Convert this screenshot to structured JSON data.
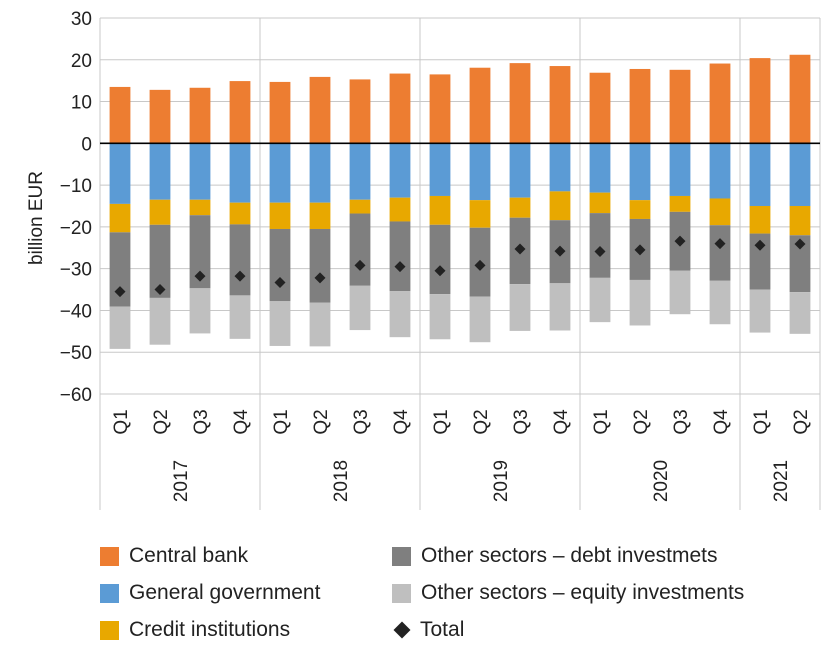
{
  "chart_data": {
    "type": "bar",
    "stacked": true,
    "ylabel": "billion EUR",
    "ylim": [
      -60,
      30
    ],
    "yticks": [
      30,
      20,
      10,
      0,
      -10,
      -20,
      -30,
      -40,
      -50,
      -60
    ],
    "ytick_labels": [
      "30",
      "20",
      "10",
      "0",
      "−10",
      "−20",
      "−30",
      "−40",
      "−50",
      "−60"
    ],
    "grid": "horizontal",
    "legend_position": "bottom",
    "years": [
      {
        "label": "2017",
        "quarters": 4
      },
      {
        "label": "2018",
        "quarters": 4
      },
      {
        "label": "2019",
        "quarters": 4
      },
      {
        "label": "2020",
        "quarters": 4
      },
      {
        "label": "2021",
        "quarters": 2
      }
    ],
    "categories": [
      "Q1",
      "Q2",
      "Q3",
      "Q4",
      "Q1",
      "Q2",
      "Q3",
      "Q4",
      "Q1",
      "Q2",
      "Q3",
      "Q4",
      "Q1",
      "Q2",
      "Q3",
      "Q4",
      "Q1",
      "Q2"
    ],
    "series": [
      {
        "name": "Central bank",
        "color": "#ED7D31",
        "values": [
          13.5,
          12.8,
          13.3,
          14.9,
          14.7,
          15.9,
          15.3,
          16.7,
          16.5,
          18.1,
          19.2,
          18.5,
          16.9,
          17.8,
          17.6,
          19.1,
          20.4,
          21.2
        ]
      },
      {
        "name": "General government",
        "color": "#5B9BD5",
        "values": [
          -14.5,
          -13.5,
          -13.5,
          -14.2,
          -14.2,
          -14.2,
          -13.5,
          -13.0,
          -12.6,
          -13.6,
          -13.0,
          -11.5,
          -11.8,
          -13.6,
          -12.6,
          -13.2,
          -15.0,
          -15.0
        ]
      },
      {
        "name": "Credit institutions",
        "color": "#E8A800",
        "values": [
          -6.8,
          -6.0,
          -3.7,
          -5.2,
          -6.3,
          -6.3,
          -3.3,
          -5.7,
          -6.9,
          -6.6,
          -4.8,
          -6.9,
          -4.9,
          -4.5,
          -3.8,
          -6.4,
          -6.6,
          -7.0
        ]
      },
      {
        "name": "Other sectors – debt investmets",
        "color": "#7F7F7F",
        "values": [
          -17.8,
          -17.5,
          -17.5,
          -17.0,
          -17.3,
          -17.6,
          -17.3,
          -16.7,
          -16.6,
          -16.5,
          -15.9,
          -15.1,
          -15.5,
          -14.6,
          -14.1,
          -13.3,
          -13.4,
          -13.6
        ]
      },
      {
        "name": "Other sectors – equity investments",
        "color": "#BFBFBF",
        "values": [
          -10.1,
          -11.2,
          -10.8,
          -10.4,
          -10.7,
          -10.5,
          -10.6,
          -11.0,
          -10.8,
          -10.9,
          -11.2,
          -11.3,
          -10.6,
          -10.9,
          -10.4,
          -10.4,
          -10.3,
          -10.0
        ]
      }
    ],
    "total": {
      "name": "Total",
      "color": "#222222",
      "values": [
        -35.5,
        -35.0,
        -31.8,
        -31.8,
        -33.3,
        -32.2,
        -29.2,
        -29.5,
        -30.5,
        -29.2,
        -25.3,
        -25.8,
        -25.9,
        -25.5,
        -23.4,
        -24.0,
        -24.4,
        -24.1
      ]
    }
  }
}
